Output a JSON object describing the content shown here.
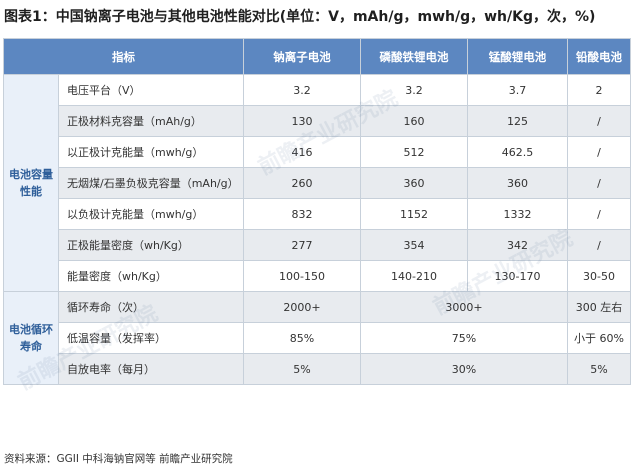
{
  "title": "图表1：中国钠离子电池与其他电池性能对比(单位：V，mAh/g，mwh/g，wh/Kg，次，%)",
  "header": {
    "metric": "指标",
    "sodium": "钠离子电池",
    "lfp": "磷酸铁锂电池",
    "lmo": "锰酸锂电池",
    "lead": "铅酸电池"
  },
  "groups": {
    "capacity": "电池容量性能",
    "cycle": "电池循环寿命"
  },
  "rows": [
    {
      "label": "电压平台（V）",
      "sodium": "3.2",
      "lfp": "3.2",
      "lmo": "3.7",
      "lead": "2"
    },
    {
      "label": "正极材料克容量（mAh/g）",
      "sodium": "130",
      "lfp": "160",
      "lmo": "125",
      "lead": "/"
    },
    {
      "label": "以正极计克能量（mwh/g）",
      "sodium": "416",
      "lfp": "512",
      "lmo": "462.5",
      "lead": "/"
    },
    {
      "label": "无烟煤/石墨负极克容量（mAh/g）",
      "sodium": "260",
      "lfp": "360",
      "lmo": "360",
      "lead": "/"
    },
    {
      "label": "以负极计克能量（mwh/g）",
      "sodium": "832",
      "lfp": "1152",
      "lmo": "1332",
      "lead": "/"
    },
    {
      "label": "正极能量密度（wh/Kg）",
      "sodium": "277",
      "lfp": "354",
      "lmo": "342",
      "lead": "/"
    },
    {
      "label": "能量密度（wh/Kg）",
      "sodium": "100-150",
      "lfp": "140-210",
      "lmo": "130-170",
      "lead": "30-50"
    }
  ],
  "cycle_rows": [
    {
      "label": "循环寿命（次）",
      "sodium": "2000+",
      "lithium_merged": "3000+",
      "lead": "300 左右"
    },
    {
      "label": "低温容量（发挥率）",
      "sodium": "85%",
      "lithium_merged": "75%",
      "lead": "小于 60%"
    },
    {
      "label": "自放电率（每月）",
      "sodium": "5%",
      "lithium_merged": "30%",
      "lead": "5%"
    }
  ],
  "source": "资料来源：GGII 中科海钠官网等 前瞻产业研究院",
  "watermark": "前瞻产业研究院"
}
